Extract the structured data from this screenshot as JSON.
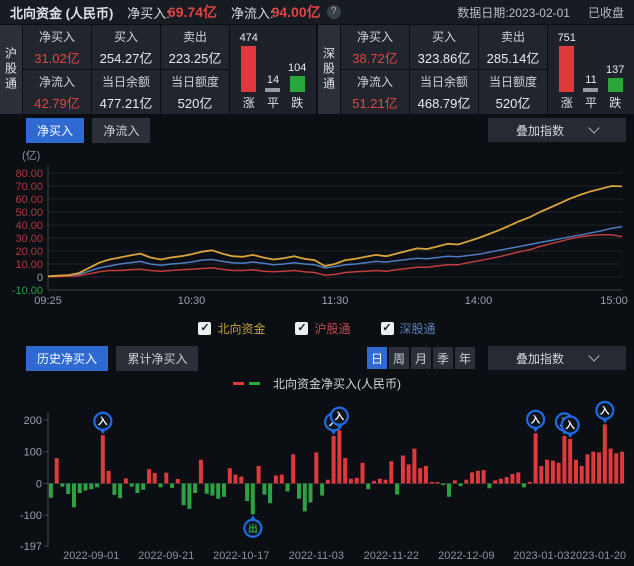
{
  "header": {
    "title": "北向资金 (人民币)",
    "net_buy_label": "净买入:",
    "net_buy_value": "69.74亿",
    "net_inflow_label": "净流入:",
    "net_inflow_value": "94.00亿",
    "date_text": "数据日期:2023-02-01",
    "status_text": "已收盘"
  },
  "panels": [
    {
      "name": "沪股通",
      "stats": [
        {
          "label": "净买入",
          "value": "31.02亿"
        },
        {
          "label": "买入",
          "value": "254.27亿"
        },
        {
          "label": "卖出",
          "value": "223.25亿"
        },
        {
          "label": "净流入",
          "value": "42.79亿"
        },
        {
          "label": "当日余额",
          "value": "477.21亿"
        },
        {
          "label": "当日额度",
          "value": "520亿"
        }
      ],
      "breadth": {
        "up": 474,
        "flat": 14,
        "down": 104,
        "up_label": "涨",
        "flat_label": "平",
        "down_label": "跌"
      }
    },
    {
      "name": "深股通",
      "stats": [
        {
          "label": "净买入",
          "value": "38.72亿"
        },
        {
          "label": "买入",
          "value": "323.86亿"
        },
        {
          "label": "卖出",
          "value": "285.14亿"
        },
        {
          "label": "净流入",
          "value": "51.21亿"
        },
        {
          "label": "当日余额",
          "value": "468.79亿"
        },
        {
          "label": "当日额度",
          "value": "520亿"
        }
      ],
      "breadth": {
        "up": 751,
        "flat": 11,
        "down": 137,
        "up_label": "涨",
        "flat_label": "平",
        "down_label": "跌"
      }
    }
  ],
  "flow_section": {
    "tabs": [
      {
        "label": "净买入",
        "active": true
      },
      {
        "label": "净流入",
        "active": false
      }
    ],
    "overlay_label": "叠加指数",
    "unit": "(亿)",
    "legend": [
      {
        "label": "北向资金",
        "color": "#c2a33c"
      },
      {
        "label": "沪股通",
        "color": "#bf4a4a"
      },
      {
        "label": "深股通",
        "color": "#5c80b6"
      }
    ]
  },
  "history_section": {
    "tabs": [
      {
        "label": "历史净买入",
        "active": true
      },
      {
        "label": "累计净买入",
        "active": false
      }
    ],
    "periods": [
      {
        "label": "日",
        "active": true
      },
      {
        "label": "周",
        "active": false
      },
      {
        "label": "月",
        "active": false
      },
      {
        "label": "季",
        "active": false
      },
      {
        "label": "年",
        "active": false
      }
    ],
    "overlay_label": "叠加指数",
    "chart_legend_label": "北向资金净买入(人民币)"
  },
  "colors": {
    "up_red": "#de3a3c",
    "down_green": "#2aa63a",
    "flat_gray": "#97999d",
    "pin_blue": "#1e6be6",
    "accent_blue": "#2e6ad1"
  },
  "chart_data": [
    {
      "type": "line",
      "title": "北向资金当日净买入分时走势",
      "ylabel": "(亿)",
      "ylim": [
        -10,
        80
      ],
      "y_ticks": [
        "80.00",
        "70.00",
        "60.00",
        "50.00",
        "40.00",
        "30.00",
        "20.00",
        "10.00",
        "0",
        "-10.00"
      ],
      "x_ticks": [
        "09:25",
        "10:30",
        "11:30",
        "14:00",
        "15:00"
      ],
      "grid": true,
      "legend_position": "bottom",
      "series": [
        {
          "name": "深股通",
          "color": "#4e7dc2",
          "values": [
            0.3,
            0.6,
            1,
            2,
            4.5,
            7,
            8.5,
            10,
            11,
            12,
            10,
            9,
            10,
            10.5,
            11.5,
            13,
            13.5,
            12,
            11,
            10.5,
            11.5,
            10.5,
            9.5,
            10,
            11,
            10,
            9.5,
            7,
            8,
            9.5,
            10,
            11,
            12,
            11.5,
            12.5,
            13.5,
            14.5,
            14,
            15,
            16,
            15.5,
            16.5,
            17.5,
            19,
            20.5,
            22,
            23.5,
            25,
            26.5,
            28,
            29.5,
            31,
            32.5,
            34,
            35.5,
            37.5,
            38.7
          ]
        },
        {
          "name": "沪股通",
          "color": "#c23d3d",
          "values": [
            0.2,
            0.4,
            0.5,
            1,
            2.5,
            4,
            5,
            5,
            5.5,
            6,
            5,
            4.5,
            5,
            5.5,
            6,
            6.5,
            7,
            6,
            5,
            5,
            5.5,
            4.5,
            4,
            4.5,
            5,
            4,
            3.5,
            1.5,
            2,
            3.5,
            4,
            4.5,
            5,
            4.5,
            5.5,
            6.5,
            7.5,
            7.5,
            8.5,
            9.5,
            9.5,
            11,
            12.5,
            14,
            15.5,
            17.5,
            19.5,
            21,
            23.5,
            25.5,
            27.5,
            29.5,
            31,
            32,
            32.5,
            32.5,
            31
          ]
        },
        {
          "name": "北向资金",
          "color": "#d9a53a",
          "values": [
            0.5,
            1,
            1.5,
            3,
            7,
            11,
            13.5,
            15,
            16.5,
            18,
            15,
            13.5,
            15,
            16,
            17.5,
            19.5,
            20.5,
            18,
            16,
            15.5,
            17,
            15,
            13.5,
            14.5,
            16,
            14,
            13,
            8.5,
            10,
            13,
            14,
            15.5,
            17,
            16,
            18,
            20,
            22,
            21.5,
            23.5,
            25.5,
            25,
            27.5,
            30,
            33,
            36,
            39.5,
            43,
            46,
            50,
            53.5,
            57,
            60.5,
            63.5,
            66,
            68,
            70,
            69.7
          ]
        }
      ]
    },
    {
      "type": "bar",
      "title": "北向资金净买入(人民币)",
      "ylim": [
        -197,
        200
      ],
      "y_ticks": [
        200,
        100,
        0,
        -100,
        -197
      ],
      "x_ticks": [
        "2022-09-01",
        "2022-09-21",
        "2022-10-17",
        "2022-11-03",
        "2022-11-22",
        "2022-12-09",
        "2023-01-03",
        "2023-01-20"
      ],
      "x_tick_indices": [
        7,
        20,
        33,
        46,
        59,
        72,
        85,
        96
      ],
      "up_color": "#de3a3c",
      "down_color": "#2ba343",
      "values": [
        -45,
        80,
        -10,
        -33,
        -75,
        -30,
        -22,
        -18,
        -12,
        152,
        40,
        -36,
        -46,
        16,
        -10,
        -30,
        -20,
        45,
        33,
        -12,
        34,
        -14,
        14,
        -68,
        -80,
        -30,
        75,
        -32,
        -38,
        -48,
        -42,
        48,
        28,
        22,
        -55,
        -97,
        55,
        -35,
        -62,
        25,
        28,
        -25,
        92,
        -48,
        -88,
        -60,
        98,
        -38,
        12,
        150,
        168,
        80,
        15,
        18,
        65,
        -18,
        8,
        15,
        12,
        70,
        -35,
        88,
        60,
        110,
        48,
        55,
        5,
        3,
        -5,
        -42,
        10,
        -8,
        12,
        35,
        40,
        42,
        -15,
        10,
        15,
        20,
        30,
        35,
        -12,
        5,
        158,
        55,
        75,
        72,
        65,
        150,
        140,
        75,
        55,
        92,
        100,
        98,
        186,
        110,
        95,
        100
      ],
      "markers": [
        {
          "index": 9,
          "label": "入"
        },
        {
          "index": 35,
          "label": "出"
        },
        {
          "index": 49,
          "label": "入"
        },
        {
          "index": 50,
          "label": "入"
        },
        {
          "index": 84,
          "label": "入"
        },
        {
          "index": 89,
          "label": "入"
        },
        {
          "index": 90,
          "label": "入"
        },
        {
          "index": 96,
          "label": "入"
        }
      ]
    }
  ]
}
